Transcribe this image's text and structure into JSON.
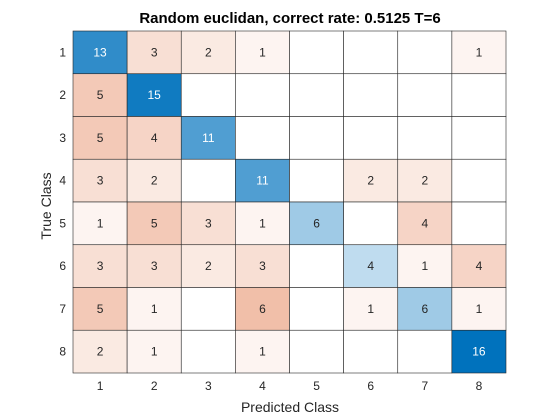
{
  "chart_data": {
    "type": "heatmap",
    "title": "Random euclidan, correct rate: 0.5125 T=6",
    "xlabel": "Predicted Class",
    "ylabel": "True Class",
    "x_categories": [
      "1",
      "2",
      "3",
      "4",
      "5",
      "6",
      "7",
      "8"
    ],
    "y_categories": [
      "1",
      "2",
      "3",
      "4",
      "5",
      "6",
      "7",
      "8"
    ],
    "values": [
      [
        13,
        3,
        2,
        1,
        null,
        null,
        null,
        1
      ],
      [
        5,
        15,
        null,
        null,
        null,
        null,
        null,
        null
      ],
      [
        5,
        4,
        11,
        null,
        null,
        null,
        null,
        null
      ],
      [
        3,
        2,
        null,
        11,
        null,
        2,
        2,
        null
      ],
      [
        1,
        5,
        3,
        1,
        6,
        null,
        4,
        null
      ],
      [
        3,
        3,
        2,
        3,
        null,
        4,
        1,
        4
      ],
      [
        5,
        1,
        null,
        6,
        null,
        1,
        6,
        1
      ],
      [
        2,
        1,
        null,
        1,
        null,
        null,
        null,
        16
      ]
    ],
    "diagonal_color": "#0072BD",
    "off_diagonal_color": "#D95319",
    "grid": true
  }
}
